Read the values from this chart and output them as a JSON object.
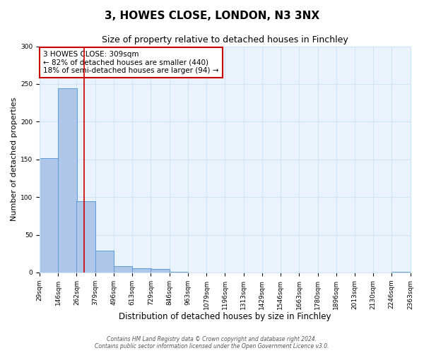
{
  "title": "3, HOWES CLOSE, LONDON, N3 3NX",
  "subtitle": "Size of property relative to detached houses in Finchley",
  "xlabel": "Distribution of detached houses by size in Finchley",
  "ylabel": "Number of detached properties",
  "bin_edges": [
    29,
    146,
    262,
    379,
    496,
    613,
    729,
    846,
    963,
    1079,
    1196,
    1313,
    1429,
    1546,
    1663,
    1780,
    1896,
    2013,
    2130,
    2246,
    2363
  ],
  "bar_heights": [
    152,
    244,
    95,
    29,
    8,
    6,
    5,
    1,
    0,
    0,
    0,
    0,
    0,
    0,
    0,
    0,
    0,
    0,
    0,
    1
  ],
  "bar_color": "#aec6e8",
  "bar_edge_color": "#5b9bd5",
  "vertical_line_x": 309,
  "vline_color": "#cc0000",
  "annotation_line1": "3 HOWES CLOSE: 309sqm",
  "annotation_line2": "← 82% of detached houses are smaller (440)",
  "annotation_line3": "18% of semi-detached houses are larger (94) →",
  "annotation_box_color": "#cc0000",
  "annotation_box_fill": "#ffffff",
  "ylim": [
    0,
    300
  ],
  "yticks": [
    0,
    50,
    100,
    150,
    200,
    250,
    300
  ],
  "grid_color": "#d0e4f7",
  "background_color": "#eaf3fb",
  "footnote": "Contains HM Land Registry data © Crown copyright and database right 2024.\nContains public sector information licensed under the Open Government Licence v3.0.",
  "title_fontsize": 11,
  "subtitle_fontsize": 9,
  "tick_label_fontsize": 6.5,
  "xlabel_fontsize": 8.5,
  "ylabel_fontsize": 8,
  "annotation_fontsize": 7.5
}
